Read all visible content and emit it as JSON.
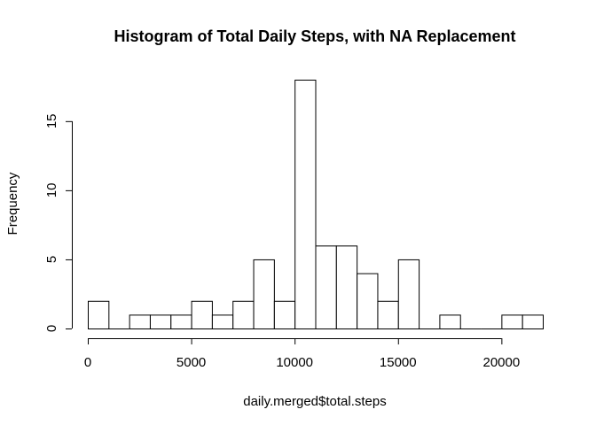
{
  "chart_data": {
    "type": "bar",
    "title": "Histogram of Total Daily Steps, with NA Replacement",
    "xlabel": "daily.merged$total.steps",
    "ylabel": "Frequency",
    "bin_edges": [
      0,
      1000,
      2000,
      3000,
      4000,
      5000,
      6000,
      7000,
      8000,
      9000,
      10000,
      11000,
      12000,
      13000,
      14000,
      15000,
      16000,
      17000,
      18000,
      19000,
      20000,
      21000,
      22000
    ],
    "values": [
      2,
      0,
      1,
      1,
      1,
      2,
      1,
      2,
      5,
      2,
      18,
      6,
      6,
      4,
      2,
      5,
      0,
      1,
      0,
      0,
      1,
      1
    ],
    "xlim": [
      0,
      22000
    ],
    "ylim": [
      0,
      18
    ],
    "x_ticks": [
      0,
      5000,
      10000,
      15000,
      20000
    ],
    "x_tick_labels": [
      "0",
      "5000",
      "10000",
      "15000",
      "20000"
    ],
    "y_ticks": [
      0,
      5,
      10,
      15
    ],
    "y_tick_labels": [
      "0",
      "5",
      "10",
      "15"
    ],
    "grid": false,
    "legend": "none"
  }
}
